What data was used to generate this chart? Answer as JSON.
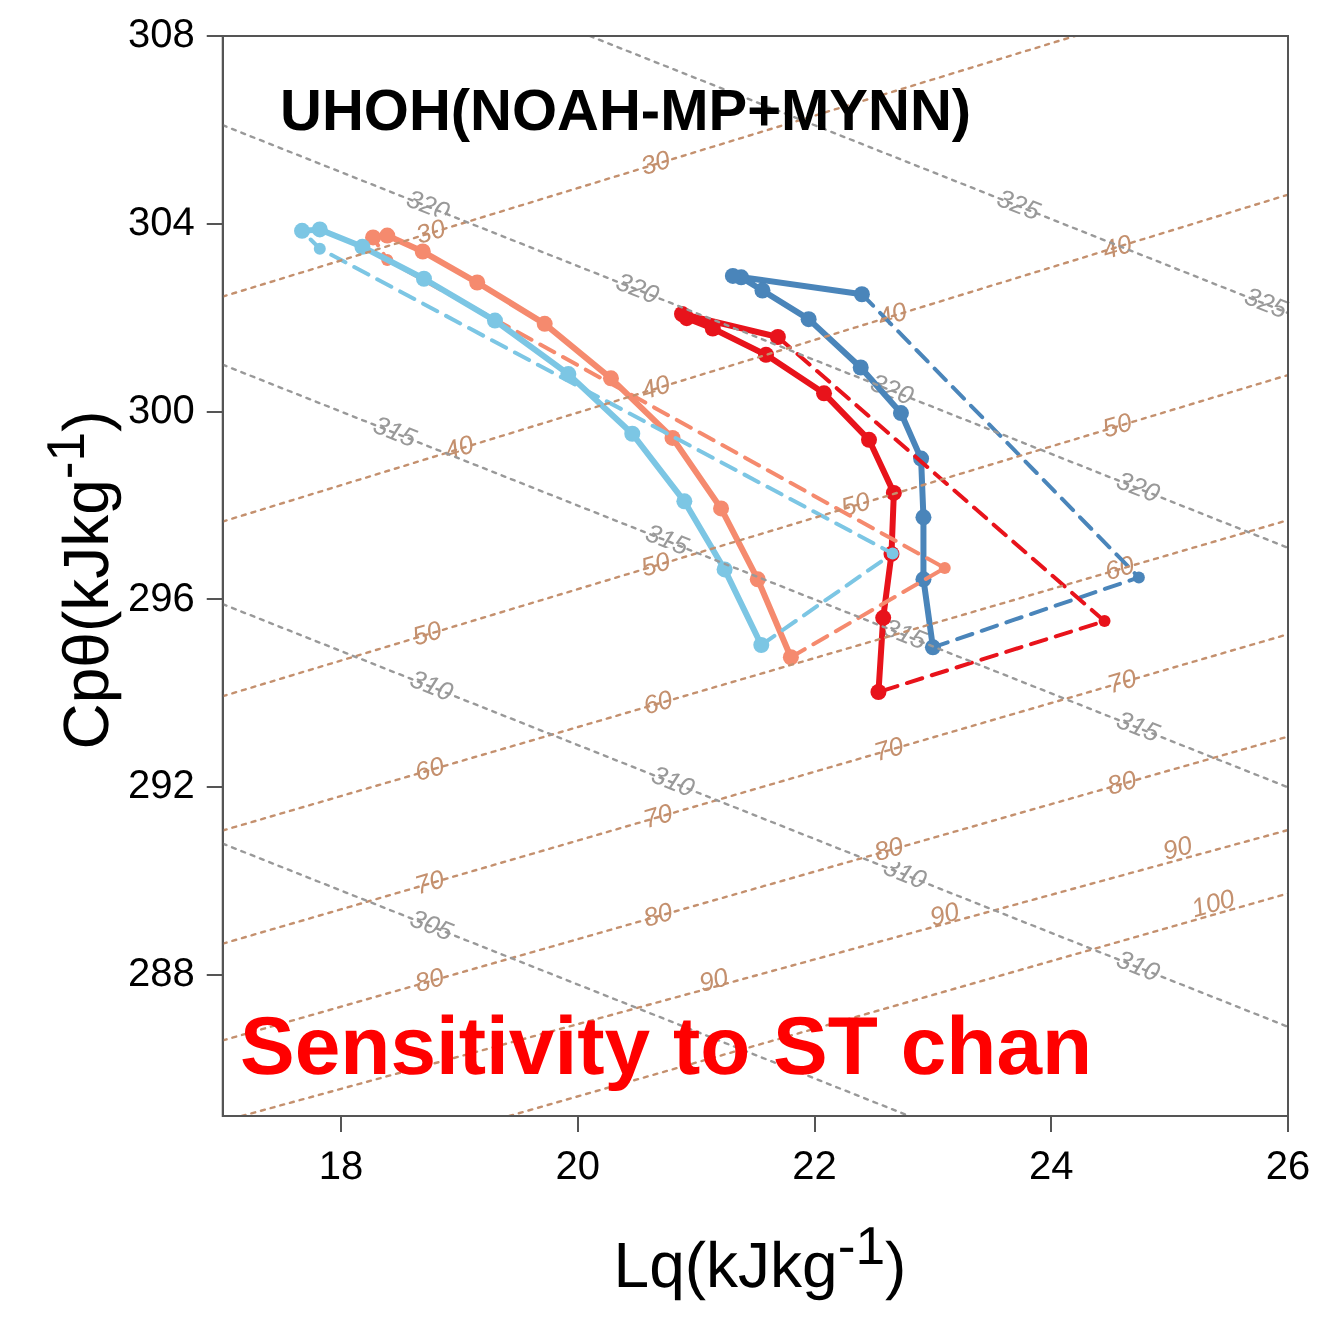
{
  "chart_data": {
    "type": "line",
    "title": "UHOH(NOAH-MP+MYNN)",
    "xlabel": "Lq(kJkg$^{-1}$)",
    "ylabel": "Cpθ(kJkg$^{-1}$)",
    "annotations": [
      "Sensitivity to ST chan",
      {
        "text": "305",
        "x": 18.76,
        "y": 289.04
      },
      {
        "text": "310",
        "x": 18.76,
        "y": 294.14
      },
      {
        "text": "310",
        "x": 20.8,
        "y": 292.1
      },
      {
        "text": "310",
        "x": 22.76,
        "y": 290.14
      },
      {
        "text": "310",
        "x": 24.73,
        "y": 288.17
      },
      {
        "text": "315",
        "x": 18.45,
        "y": 299.55
      },
      {
        "text": "315",
        "x": 20.75,
        "y": 297.25
      },
      {
        "text": "315",
        "x": 22.76,
        "y": 295.24
      },
      {
        "text": "315",
        "x": 24.73,
        "y": 293.27
      },
      {
        "text": "320",
        "x": 18.73,
        "y": 304.37
      },
      {
        "text": "320",
        "x": 20.5,
        "y": 302.6
      },
      {
        "text": "320",
        "x": 22.65,
        "y": 300.45
      },
      {
        "text": "320",
        "x": 24.73,
        "y": 298.37
      },
      {
        "text": "325",
        "x": 23.72,
        "y": 304.38
      },
      {
        "text": "325",
        "x": 25.81,
        "y": 302.29
      },
      {
        "text": "30",
        "x": 18.76,
        "y": 303.81
      },
      {
        "text": "30",
        "x": 20.66,
        "y": 305.27
      },
      {
        "text": "40",
        "x": 19.0,
        "y": 299.21
      },
      {
        "text": "40",
        "x": 20.66,
        "y": 300.49
      },
      {
        "text": "40",
        "x": 22.66,
        "y": 302.04
      },
      {
        "text": "40",
        "x": 24.56,
        "y": 303.48
      },
      {
        "text": "50",
        "x": 18.73,
        "y": 295.25
      },
      {
        "text": "50",
        "x": 20.66,
        "y": 296.72
      },
      {
        "text": "50",
        "x": 22.35,
        "y": 298.0
      },
      {
        "text": "50",
        "x": 24.56,
        "y": 299.68
      },
      {
        "text": "60",
        "x": 18.75,
        "y": 292.36
      },
      {
        "text": "60",
        "x": 20.68,
        "y": 293.78
      },
      {
        "text": "60",
        "x": 24.58,
        "y": 296.64
      },
      {
        "text": "70",
        "x": 18.75,
        "y": 289.95
      },
      {
        "text": "70",
        "x": 20.68,
        "y": 291.36
      },
      {
        "text": "70",
        "x": 22.63,
        "y": 292.79
      },
      {
        "text": "70",
        "x": 24.6,
        "y": 294.23
      },
      {
        "text": "80",
        "x": 18.75,
        "y": 287.87
      },
      {
        "text": "80",
        "x": 20.68,
        "y": 289.26
      },
      {
        "text": "80",
        "x": 22.63,
        "y": 290.66
      },
      {
        "text": "80",
        "x": 24.6,
        "y": 292.07
      },
      {
        "text": "90",
        "x": 21.15,
        "y": 287.87
      },
      {
        "text": "90",
        "x": 23.1,
        "y": 289.27
      },
      {
        "text": "90",
        "x": 25.07,
        "y": 290.68
      },
      {
        "text": "100",
        "x": 25.37,
        "y": 289.5
      }
    ],
    "xlim": [
      17,
      26
    ],
    "ylim": [
      285,
      308
    ],
    "xticks": [
      18,
      20,
      22,
      24,
      26
    ],
    "yticks": [
      288,
      292,
      296,
      300,
      304,
      308
    ],
    "series": [
      {
        "color": "#999999",
        "line_style": "dotted",
        "marker": "none",
        "x": [
          17,
          22.8
        ],
        "values": [
          290.8,
          285
        ]
      },
      {
        "color": "#999999",
        "line_style": "dotted",
        "marker": "none",
        "x": [
          17,
          26
        ],
        "values": [
          295.9,
          286.9
        ]
      },
      {
        "color": "#999999",
        "line_style": "dotted",
        "marker": "none",
        "x": [
          17,
          26
        ],
        "values": [
          301.0,
          292.0
        ]
      },
      {
        "color": "#999999",
        "line_style": "dotted",
        "marker": "none",
        "x": [
          17,
          26
        ],
        "values": [
          306.1,
          297.1
        ]
      },
      {
        "color": "#999999",
        "line_style": "dotted",
        "marker": "none",
        "x": [
          20.1,
          26
        ],
        "values": [
          308,
          302.1
        ]
      },
      {
        "color": "#c4906e",
        "line_style": "dotted",
        "marker": "none",
        "x": [
          17,
          24.2
        ],
        "values": [
          302.45,
          308.0
        ]
      },
      {
        "color": "#c4906e",
        "line_style": "dotted",
        "marker": "none",
        "x": [
          17,
          26
        ],
        "values": [
          297.66,
          304.62
        ]
      },
      {
        "color": "#c4906e",
        "line_style": "dotted",
        "marker": "none",
        "x": [
          17,
          26
        ],
        "values": [
          293.94,
          300.78
        ]
      },
      {
        "color": "#c4906e",
        "line_style": "dotted",
        "marker": "none",
        "x": [
          17,
          26
        ],
        "values": [
          291.08,
          297.69
        ]
      },
      {
        "color": "#c4906e",
        "line_style": "dotted",
        "marker": "none",
        "x": [
          17,
          26
        ],
        "values": [
          288.67,
          295.26
        ]
      },
      {
        "color": "#c4906e",
        "line_style": "dotted",
        "marker": "none",
        "x": [
          17,
          26
        ],
        "values": [
          286.61,
          293.08
        ]
      },
      {
        "color": "#c4906e",
        "line_style": "dotted",
        "marker": "none",
        "x": [
          17.16,
          26
        ],
        "values": [
          285,
          291.09
        ]
      },
      {
        "color": "#c4906e",
        "line_style": "dotted",
        "marker": "none",
        "x": [
          19.42,
          26
        ],
        "values": [
          285,
          289.74
        ]
      },
      {
        "color": "#7cc6e4",
        "line_style": "solid",
        "marker": "circle",
        "x": [
          17.67,
          17.82,
          18.18,
          18.7,
          19.3,
          19.92,
          20.46,
          20.9,
          21.24,
          21.55
        ],
        "values": [
          303.85,
          303.88,
          303.51,
          302.83,
          301.94,
          300.8,
          299.53,
          298.09,
          296.64,
          295.03
        ]
      },
      {
        "color": "#7cc6e4",
        "line_style": "dashed",
        "marker": "circle",
        "x": [
          21.55,
          22.66,
          17.82,
          17.67
        ],
        "values": [
          295.03,
          296.98,
          303.47,
          303.85
        ]
      },
      {
        "color": "#f58a6e",
        "line_style": "solid",
        "marker": "circle",
        "x": [
          18.27,
          18.39,
          18.69,
          19.15,
          19.72,
          20.28,
          20.8,
          21.21,
          21.52,
          21.8
        ],
        "values": [
          303.71,
          303.75,
          303.41,
          302.75,
          301.87,
          300.71,
          299.44,
          297.94,
          296.43,
          294.77
        ]
      },
      {
        "color": "#f58a6e",
        "line_style": "dashed",
        "marker": "circle",
        "x": [
          21.8,
          23.1,
          18.39,
          18.27
        ],
        "values": [
          294.77,
          296.67,
          303.23,
          303.71
        ]
      },
      {
        "color": "#e8131b",
        "line_style": "solid",
        "marker": "circle",
        "x": [
          22.54,
          22.58,
          22.65,
          22.67,
          22.46,
          22.08,
          21.59,
          21.14,
          20.92,
          20.88,
          21.69
        ],
        "values": [
          294.03,
          295.61,
          296.97,
          298.27,
          299.4,
          300.39,
          301.21,
          301.77,
          301.99,
          302.08,
          301.59
        ]
      },
      {
        "color": "#e8131b",
        "line_style": "dashed",
        "marker": "circle",
        "x": [
          21.69,
          24.45,
          22.54
        ],
        "values": [
          301.59,
          295.54,
          294.03
        ]
      },
      {
        "color": "#4a85ba",
        "line_style": "solid",
        "marker": "circle",
        "x": [
          23.0,
          22.92,
          22.92,
          22.9,
          22.73,
          22.39,
          21.95,
          21.56,
          21.38,
          21.31,
          22.4
        ],
        "values": [
          294.98,
          296.43,
          297.75,
          299.0,
          299.97,
          300.94,
          301.97,
          302.58,
          302.86,
          302.89,
          302.5
        ]
      },
      {
        "color": "#4a85ba",
        "line_style": "dashed",
        "marker": "circle",
        "x": [
          22.4,
          24.74,
          23.0
        ],
        "values": [
          302.5,
          296.47,
          294.98
        ]
      }
    ]
  }
}
